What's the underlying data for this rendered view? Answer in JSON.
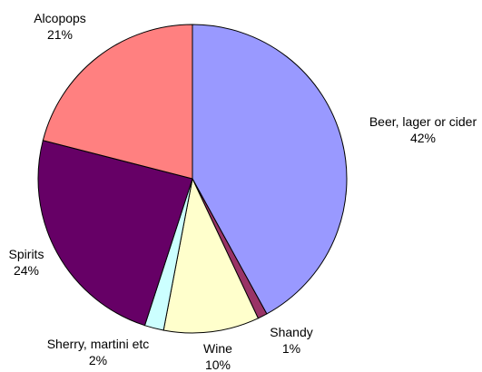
{
  "chart_data": {
    "type": "pie",
    "title": "",
    "start": "12 o'clock, clockwise",
    "slices": [
      {
        "name": "Beer, lager or cider",
        "value": 42,
        "label": "42%",
        "color": "#9999ff"
      },
      {
        "name": "Shandy",
        "value": 1,
        "label": "1%",
        "color": "#993366"
      },
      {
        "name": "Wine",
        "value": 10,
        "label": "10%",
        "color": "#ffffcc"
      },
      {
        "name": "Sherry, martini etc",
        "value": 2,
        "label": "2%",
        "color": "#ccffff"
      },
      {
        "name": "Spirits",
        "value": 24,
        "label": "24%",
        "color": "#660066"
      },
      {
        "name": "Alcopops",
        "value": 21,
        "label": "21%",
        "color": "#ff8080"
      }
    ],
    "legend": "none",
    "edge_color": "#000000"
  }
}
